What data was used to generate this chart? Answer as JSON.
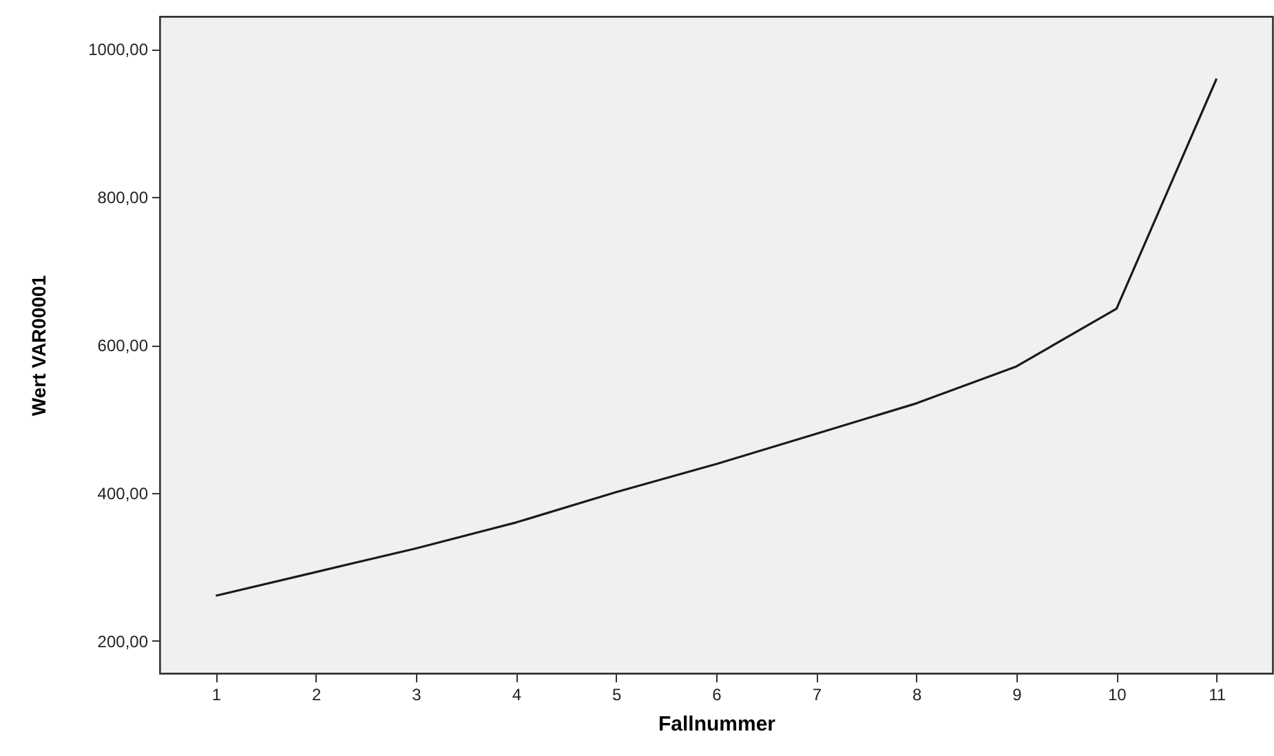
{
  "chart_data": {
    "type": "line",
    "xlabel": "Fallnummer",
    "ylabel": "Wert VAR00001",
    "x": [
      1,
      2,
      3,
      4,
      5,
      6,
      7,
      8,
      9,
      10,
      11
    ],
    "series": [
      {
        "color": "#1a1a1a",
        "values": [
          261,
          293,
          325,
          360,
          401,
          439,
          480,
          521,
          571,
          649,
          960
        ]
      }
    ],
    "xlim": [
      0.44,
      11.56
    ],
    "xticks": [
      1,
      2,
      3,
      4,
      5,
      6,
      7,
      8,
      9,
      10,
      11
    ],
    "ylim": [
      156,
      1044
    ],
    "yticks": [
      {
        "value": 200,
        "label": "200,00"
      },
      {
        "value": 400,
        "label": "400,00"
      },
      {
        "value": 600,
        "label": "600,00"
      },
      {
        "value": 800,
        "label": "800,00"
      },
      {
        "value": 1000,
        "label": "1000,00"
      }
    ],
    "grid": false,
    "marker": "none",
    "line_style": "solid"
  }
}
